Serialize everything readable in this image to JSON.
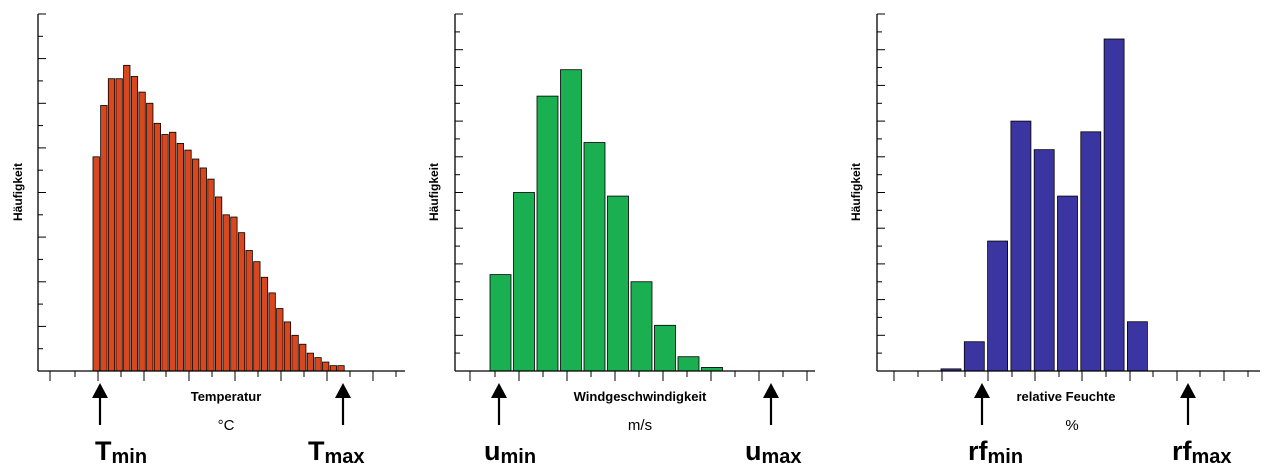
{
  "chart_data": [
    {
      "type": "bar",
      "title": "",
      "ylabel": "Häufigkeit",
      "xlabel": "Temperatur",
      "xunit": "°C",
      "min_label": {
        "main": "T",
        "sub": "min"
      },
      "max_label": {
        "main": "T",
        "sub": "max"
      },
      "color": "#d9471f",
      "ylim": [
        0,
        8
      ],
      "grid": false,
      "values": [
        4.8,
        5.95,
        6.55,
        6.55,
        6.85,
        6.6,
        6.25,
        6.0,
        5.55,
        5.3,
        5.35,
        5.1,
        4.95,
        4.75,
        4.55,
        4.3,
        3.9,
        3.5,
        3.45,
        3.1,
        2.7,
        2.45,
        2.1,
        1.75,
        1.4,
        1.1,
        0.8,
        0.6,
        0.4,
        0.3,
        0.2,
        0.12,
        0.12
      ]
    },
    {
      "type": "bar",
      "title": "",
      "ylabel": "Häufigkeit",
      "xlabel": "Windgeschwindigkeit",
      "xunit": "m/s",
      "min_label": {
        "main": "u",
        "sub": "min"
      },
      "max_label": {
        "main": "u",
        "sub": "max"
      },
      "color": "#1aaf50",
      "ylim": [
        0,
        5
      ],
      "grid": false,
      "values": [
        1.35,
        2.5,
        3.85,
        4.22,
        3.2,
        2.45,
        1.25,
        0.64,
        0.2,
        0.05
      ]
    },
    {
      "type": "bar",
      "title": "",
      "ylabel": "Häufigkeit",
      "xlabel": "relative Feuchte",
      "xunit": "%",
      "min_label": {
        "main": "rf",
        "sub": "min"
      },
      "max_label": {
        "main": "rf",
        "sub": "max"
      },
      "color": "#3a35a0",
      "ylim": [
        0,
        5
      ],
      "grid": false,
      "values": [
        0.03,
        0.41,
        1.82,
        3.5,
        3.1,
        2.45,
        3.35,
        4.65,
        0.69
      ]
    }
  ]
}
